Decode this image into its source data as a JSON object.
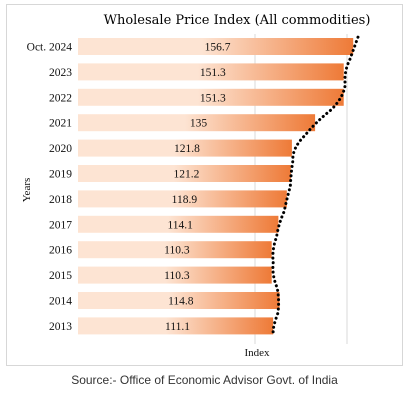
{
  "chart_data": {
    "type": "bar",
    "orientation": "horizontal",
    "title": "Wholesale Price Index (All commodities)",
    "xlabel": "Index",
    "ylabel": "Years",
    "categories": [
      "Oct. 2024",
      "2023",
      "2022",
      "2021",
      "2020",
      "2019",
      "2018",
      "2017",
      "2016",
      "2015",
      "2014",
      "2013"
    ],
    "values": [
      156.7,
      151.3,
      151.3,
      135,
      121.8,
      121.2,
      118.9,
      114.1,
      110.3,
      110.3,
      114.8,
      111.1
    ],
    "data_labels": [
      "156.7",
      "151.3",
      "151.3",
      "135",
      "121.8",
      "121.2",
      "118.9",
      "114.1",
      "110.3",
      "110.3",
      "114.8",
      "111.1"
    ],
    "xlim": [
      0,
      160
    ],
    "trendline": "dotted",
    "grid": true,
    "colors": {
      "bar_light": "#fde4d3",
      "bar_dark": "#ee7a37",
      "trend": "#000000",
      "grid": "#d9d9d9"
    }
  },
  "source": "Source:- Office of Economic Advisor Govt. of India"
}
